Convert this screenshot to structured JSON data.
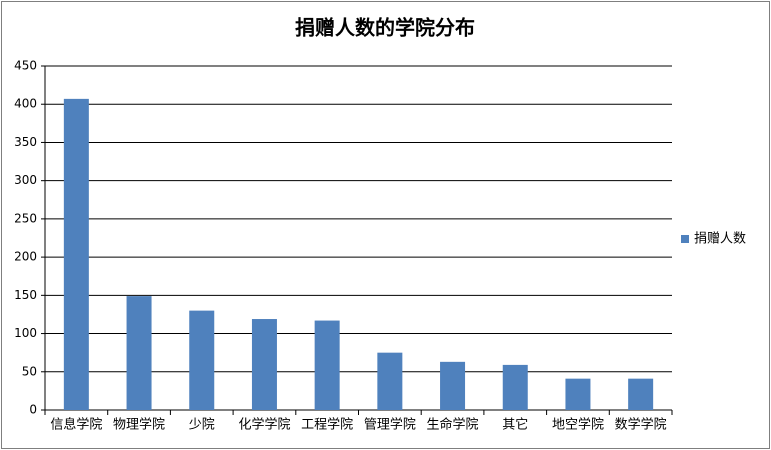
{
  "chart_data": {
    "type": "bar",
    "title": "捐赠人数的学院分布",
    "categories": [
      "信息学院",
      "物理学院",
      "少院",
      "化学学院",
      "工程学院",
      "管理学院",
      "生命学院",
      "其它",
      "地空学院",
      "数学学院"
    ],
    "series": [
      {
        "name": "捐赠人数",
        "color": "#4f81bd",
        "values": [
          407,
          149,
          130,
          119,
          117,
          75,
          63,
          59,
          41,
          41
        ]
      }
    ],
    "ylim": [
      0,
      450
    ],
    "yticks": [
      0,
      50,
      100,
      150,
      200,
      250,
      300,
      350,
      400,
      450
    ],
    "grid": true,
    "legend": "right"
  }
}
